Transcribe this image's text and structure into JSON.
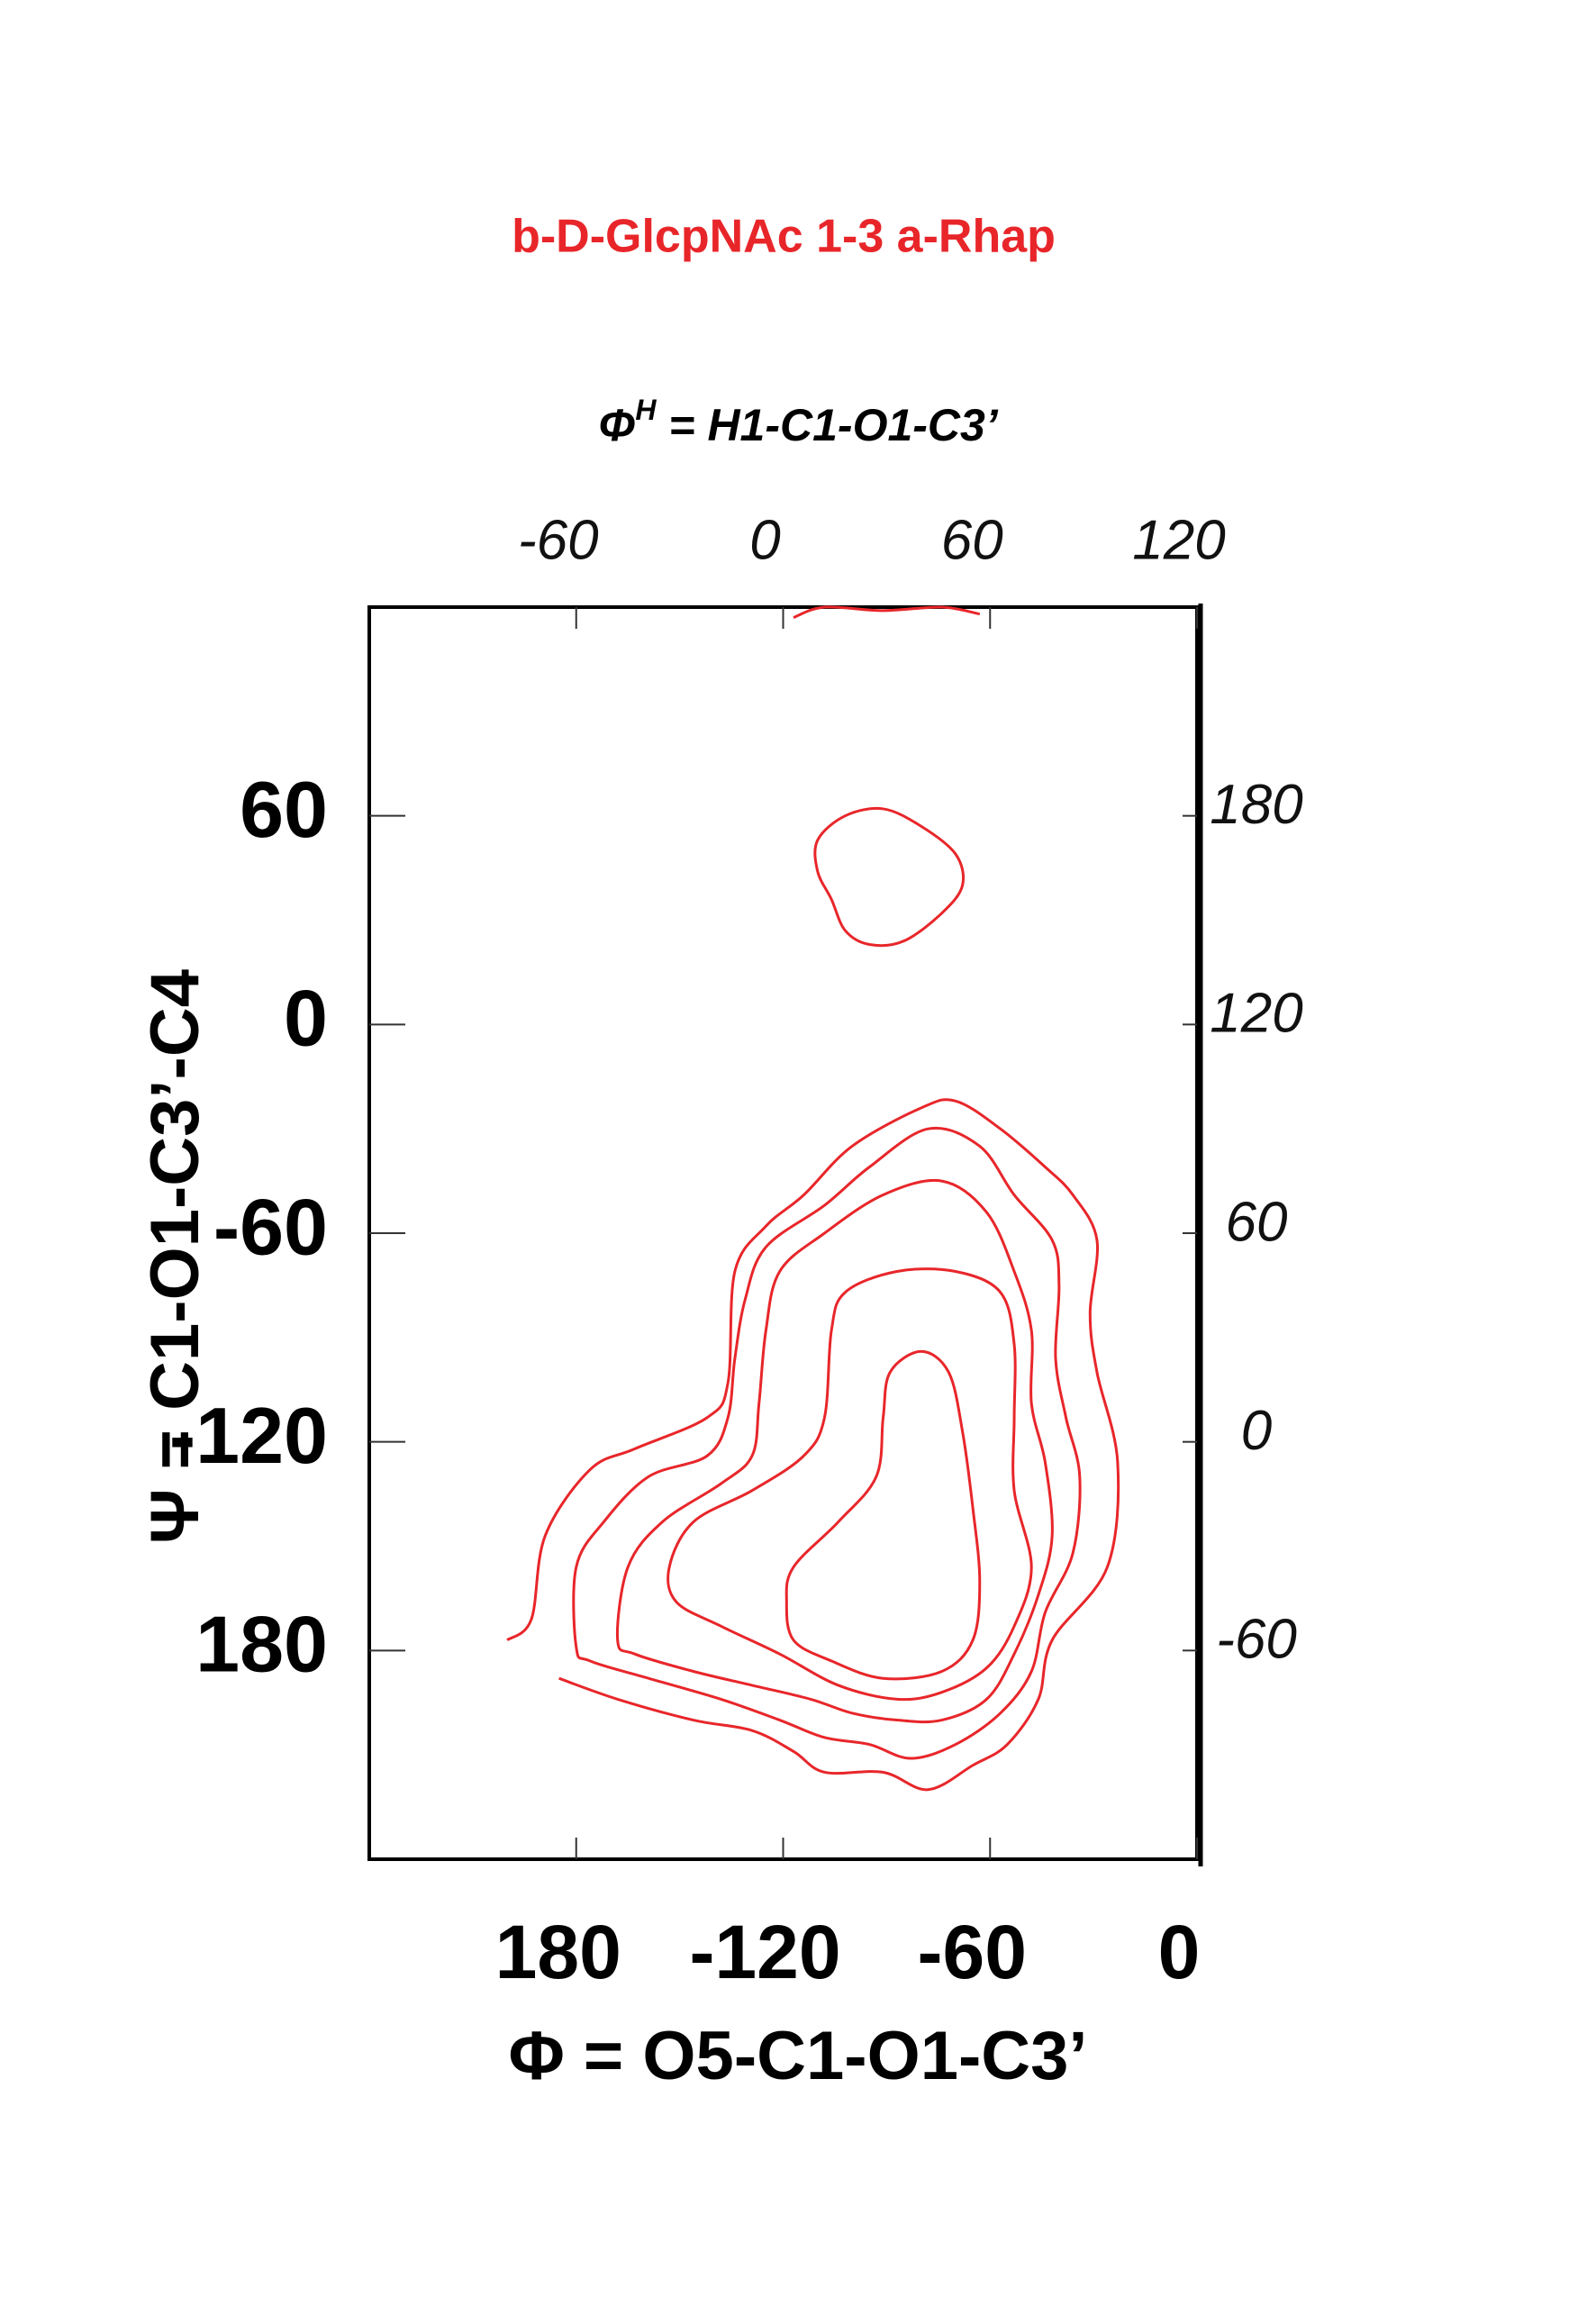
{
  "chart_data": {
    "type": "contour",
    "title": "b-D-GlcpNAc 1-3 a-Rhap",
    "xlabel": "Φ = O5-C1-O1-C3’",
    "ylabel": "Ψ = C1-O1-C3’-C4",
    "x2label": {
      "symbol": "Φ",
      "superscript": "H",
      "rest": " = H1-C1-O1-C3’"
    },
    "xlim": [
      120,
      360
    ],
    "xticks": [
      180,
      {
        "value": 240,
        "label": "-120"
      },
      {
        "value": 300,
        "label": "-60"
      },
      {
        "value": 360,
        "label": "0"
      }
    ],
    "ylim": [
      -240,
      120
    ],
    "yticks": [
      60,
      0,
      -60,
      -120,
      {
        "value": -180,
        "label": "180"
      }
    ],
    "x2lim": [
      -120,
      120
    ],
    "x2ticks": [
      -60,
      0,
      60,
      120
    ],
    "y2lim": [
      -120,
      240
    ],
    "y2ticks": [
      180,
      120,
      60,
      0,
      -60
    ],
    "color": "#e8262a",
    "contours": [
      {
        "closed": false,
        "x": [
          243,
          252,
          269,
          286,
          297
        ],
        "y": [
          117,
          120,
          119,
          120,
          118
        ]
      },
      {
        "closed": true,
        "x": [
          250,
          258,
          269,
          280,
          290,
          292,
          286,
          275,
          265,
          258,
          254,
          250
        ],
        "y": [
          53,
          60,
          62,
          57,
          49,
          40,
          32,
          24,
          23,
          27,
          36,
          44
        ]
      },
      {
        "closed": false,
        "x": [
          160,
          167,
          171,
          184,
          197,
          218,
          224,
          226,
          235,
          246,
          260,
          280,
          290,
          303,
          316,
          324,
          331,
          329,
          331,
          337,
          334,
          318,
          314,
          305,
          295,
          282,
          269,
          252,
          243,
          231,
          214,
          192,
          175
        ],
        "y": [
          -177,
          -171,
          -147,
          -128,
          -122,
          -113,
          -103,
          -71,
          -58,
          -49,
          -35,
          -24,
          -22,
          -30,
          -41,
          -49,
          -62,
          -83,
          -100,
          -126,
          -156,
          -177,
          -194,
          -207,
          -213,
          -220,
          -215,
          -215,
          -209,
          -203,
          -200,
          -194,
          -188
        ]
      },
      {
        "closed": true,
        "x": [
          180,
          180,
          188,
          201,
          218,
          224,
          226,
          229,
          235,
          252,
          265,
          282,
          297,
          307,
          318,
          320,
          319,
          322,
          326,
          324,
          316,
          312,
          303,
          290,
          277,
          265,
          252,
          239,
          222,
          201,
          184
        ],
        "y": [
          -179,
          -156,
          -143,
          -130,
          -124,
          -113,
          -96,
          -79,
          -64,
          -52,
          -41,
          -30,
          -35,
          -49,
          -62,
          -75,
          -96,
          -113,
          -130,
          -152,
          -169,
          -186,
          -198,
          -207,
          -211,
          -207,
          -205,
          -200,
          -194,
          -188,
          -183
        ]
      },
      {
        "closed": true,
        "x": [
          192,
          195,
          205,
          222,
          231,
          233,
          235,
          239,
          252,
          269,
          286,
          299,
          307,
          312,
          312,
          316,
          318,
          314,
          307,
          299,
          286,
          273,
          260,
          248,
          231,
          214,
          197
        ],
        "y": [
          -177,
          -156,
          -143,
          -132,
          -124,
          -109,
          -88,
          -71,
          -60,
          -49,
          -45,
          -54,
          -71,
          -88,
          -109,
          -126,
          -147,
          -164,
          -181,
          -194,
          -200,
          -200,
          -198,
          -194,
          -190,
          -186,
          -181
        ]
      },
      {
        "closed": true,
        "x": [
          207,
          214,
          231,
          246,
          252,
          254,
          258,
          273,
          290,
          303,
          307,
          307,
          307,
          312,
          307,
          299,
          286,
          273,
          256,
          239,
          222,
          209
        ],
        "y": [
          -156,
          -143,
          -134,
          -124,
          -113,
          -88,
          -77,
          -71,
          -71,
          -77,
          -92,
          -113,
          -134,
          -156,
          -173,
          -185,
          -192,
          -194,
          -190,
          -181,
          -173,
          -166
        ]
      },
      {
        "closed": true,
        "x": [
          241,
          243,
          256,
          267,
          269,
          271,
          280,
          288,
          292,
          295,
          297,
          295,
          286,
          269,
          254,
          243
        ],
        "y": [
          -166,
          -156,
          -143,
          -130,
          -113,
          -100,
          -94,
          -100,
          -117,
          -139,
          -160,
          -177,
          -186,
          -188,
          -183,
          -177
        ]
      }
    ]
  }
}
